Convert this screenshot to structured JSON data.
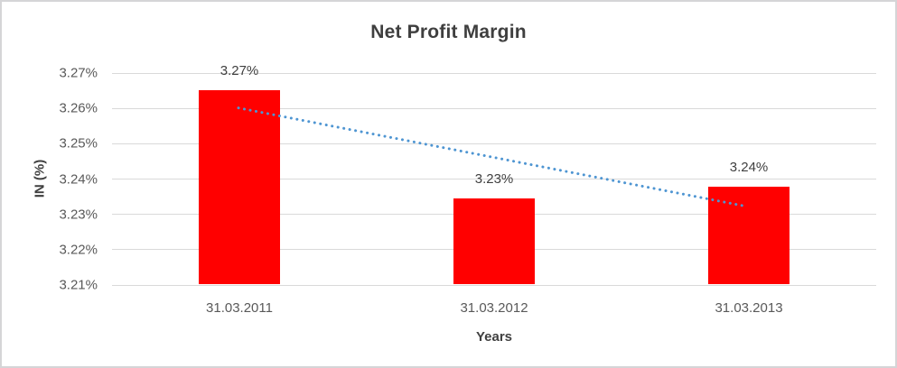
{
  "chart_data": {
    "type": "bar",
    "title": "Net Profit Margin",
    "xlabel": "Years",
    "ylabel": "IN (%)",
    "categories": [
      "31.03.2011",
      "31.03.2012",
      "31.03.2013"
    ],
    "values": [
      3.265,
      3.2345,
      3.2377
    ],
    "data_labels": [
      "3.27%",
      "3.23%",
      "3.24%"
    ],
    "y_axis": {
      "min": 3.21,
      "max": 3.275,
      "tick_step": 0.01,
      "ticks": [
        3.21,
        3.22,
        3.23,
        3.24,
        3.25,
        3.26,
        3.27
      ],
      "tick_labels": [
        "3.21%",
        "3.22%",
        "3.23%",
        "3.24%",
        "3.25%",
        "3.26%",
        "3.27%"
      ]
    },
    "grid": "horizontal",
    "legend": "none",
    "trendline": {
      "type": "linear",
      "style": "dotted",
      "start_value": 3.26,
      "end_value": 3.2322
    },
    "colors": {
      "bar": "#ff0000",
      "trendline": "#4e95d2",
      "gridline": "#d9d9d9",
      "axis_text": "#595959",
      "label_text": "#404040",
      "title_text": "#3f3f3f",
      "frame_border": "#d5d5d7",
      "background": "#ffffff"
    }
  }
}
